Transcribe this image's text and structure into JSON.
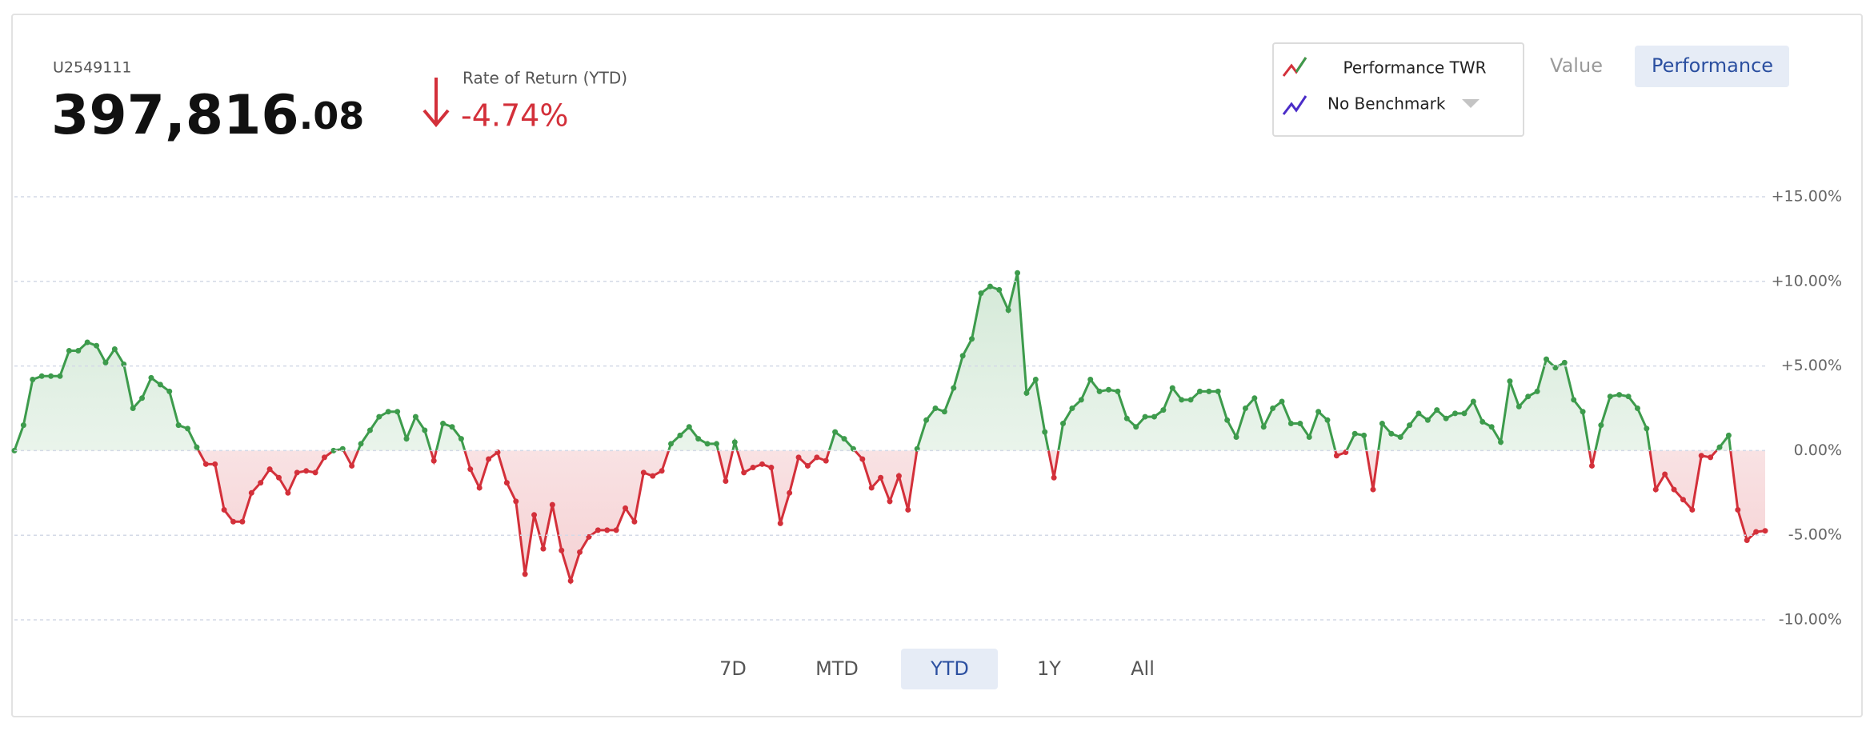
{
  "header": {
    "account": "U2549111",
    "balance_whole": "397,816",
    "balance_cents": ".08",
    "return_label": "Rate of Return (YTD)",
    "return_value": "-4.74%"
  },
  "view_toggle": [
    "Value",
    "Performance"
  ],
  "ranges": [
    "7D",
    "MTD",
    "YTD",
    "1Y",
    "All"
  ],
  "chart_data": {
    "type": "line",
    "series": [
      {
        "name": "Performance TWR",
        "color": "#3d9b4c",
        "negative_color": "#d3303a",
        "values": [
          0,
          1.5,
          4.2,
          4.4,
          4.4,
          4.4,
          5.9,
          5.9,
          6.4,
          6.2,
          5.2,
          6.0,
          5.1,
          2.5,
          3.1,
          4.3,
          3.9,
          3.5,
          1.5,
          1.3,
          0.2,
          -0.8,
          -0.8,
          -3.5,
          -4.2,
          -4.2,
          -2.5,
          -1.9,
          -1.1,
          -1.6,
          -2.5,
          -1.3,
          -1.2,
          -1.3,
          -0.4,
          0,
          0.1,
          -0.9,
          0.4,
          1.2,
          2.0,
          2.3,
          2.3,
          0.7,
          2.0,
          1.2,
          -0.6,
          1.6,
          1.4,
          0.7,
          -1.1,
          -2.2,
          -0.5,
          -0.1,
          -1.9,
          -3.0,
          -7.3,
          -3.8,
          -5.8,
          -3.2,
          -5.9,
          -7.7,
          -6.0,
          -5.1,
          -4.7,
          -4.7,
          -4.7,
          -3.4,
          -4.2,
          -1.3,
          -1.5,
          -1.2,
          0.4,
          0.9,
          1.4,
          0.7,
          0.4,
          0.4,
          -1.8,
          0.5,
          -1.3,
          -1.0,
          -0.8,
          -1.0,
          -4.3,
          -2.5,
          -0.4,
          -0.9,
          -0.4,
          -0.6,
          1.1,
          0.7,
          0.1,
          -0.5,
          -2.2,
          -1.6,
          -3.0,
          -1.5,
          -3.5,
          0.1,
          1.8,
          2.5,
          2.3,
          3.7,
          5.6,
          6.6,
          9.3,
          9.7,
          9.5,
          8.3,
          10.5,
          3.4,
          4.2,
          1.1,
          -1.6,
          1.6,
          2.5,
          3.0,
          4.2,
          3.5,
          3.6,
          3.5,
          1.9,
          1.4,
          2.0,
          2.0,
          2.4,
          3.7,
          3.0,
          3.0,
          3.5,
          3.5,
          3.5,
          1.8,
          0.8,
          2.5,
          3.1,
          1.4,
          2.5,
          2.9,
          1.6,
          1.6,
          0.8,
          2.3,
          1.8,
          -0.3,
          -0.1,
          1.0,
          0.9,
          -2.3,
          1.6,
          1.0,
          0.8,
          1.5,
          2.2,
          1.8,
          2.4,
          1.9,
          2.2,
          2.2,
          2.9,
          1.7,
          1.4,
          0.5,
          4.1,
          2.6,
          3.2,
          3.5,
          5.4,
          4.9,
          5.2,
          3.0,
          2.3,
          -0.9,
          1.5,
          3.2,
          3.3,
          3.2,
          2.5,
          1.3,
          -2.3,
          -1.4,
          -2.3,
          -2.9,
          -3.5,
          -0.3,
          -0.4,
          0.2,
          0.9,
          -3.5,
          -5.3,
          -4.8,
          -4.74
        ]
      }
    ],
    "benchmark": {
      "name": "No Benchmark",
      "color": "#4a2cc8"
    },
    "ylim": [
      -10,
      15
    ],
    "yticks": [
      {
        "value": 15,
        "label": "+15.00%"
      },
      {
        "value": 10,
        "label": "+10.00%"
      },
      {
        "value": 5,
        "label": "+5.00%"
      },
      {
        "value": 0,
        "label": "0.00%"
      },
      {
        "value": -5,
        "label": "-5.00%"
      },
      {
        "value": -10,
        "label": "-10.00%"
      }
    ],
    "grid": true
  }
}
